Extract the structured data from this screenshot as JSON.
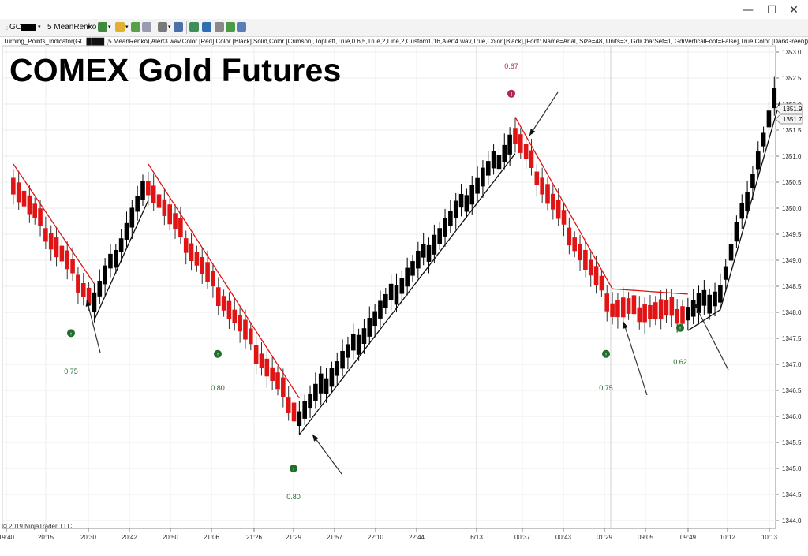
{
  "window": {
    "minimize": "—",
    "maximize": "☐",
    "close": "✕"
  },
  "toolbar": {
    "instrument": "GC",
    "period": "5 MeanRenko"
  },
  "indicator_label": "Turning_Points_Indicator(GC ████ (5 MeanRenko),Alert3.wav,Color [Red],Color [Black],Solid,Color [Crimson],TopLeft,True,0.6,5,True,2,Line,2,Custom1,16,Alert4.wav,True,Color [Black],[Font: Name=Arial, Size=48, Units=3, GdiCharSet=1, GdiVerticalFont=False],True,Color [DarkGreen])",
  "chart_title": "COMEX Gold Futures",
  "copyright": "© 2019 NinjaTrader, LLC",
  "colors": {
    "up": "#000000",
    "down": "#e01414",
    "buy_signal": "#1f6e2a",
    "sell_signal": "#b0274d",
    "arrow": "#333333"
  },
  "chart_data": {
    "type": "candlestick",
    "y_ticks": [
      "1353.0",
      "1352.5",
      "1352.0",
      "1351.5",
      "1351.0",
      "1350.5",
      "1350.0",
      "1349.5",
      "1349.0",
      "1348.5",
      "1348.0",
      "1347.5",
      "1347.0",
      "1346.5",
      "1346.0",
      "1345.5",
      "1345.0",
      "1344.5",
      "1344.0"
    ],
    "ylim": [
      1343.9,
      1353.1
    ],
    "x_ticks": [
      "19:40",
      "20:15",
      "20:30",
      "20:42",
      "20:50",
      "21:06",
      "21:26",
      "21:29",
      "21:57",
      "22:10",
      "22:44",
      "6/13",
      "00:37",
      "00:43",
      "01:29",
      "09:05",
      "09:49",
      "10:12",
      "10:13"
    ],
    "price_labels": [
      "1351.9",
      "1351.7"
    ],
    "swing_path": [
      [
        1350.5,
        1
      ],
      [
        1348.2,
        16
      ],
      [
        1350.5,
        26
      ],
      [
        1346.0,
        54
      ],
      [
        1351.4,
        94
      ],
      [
        1348.1,
        112
      ],
      [
        1348.0,
        126
      ],
      [
        1348.4,
        132
      ],
      [
        1352.4,
        143
      ]
    ],
    "signals": [
      {
        "type": "buy",
        "value": "0.75",
        "price": 1347.6
      },
      {
        "type": "buy",
        "value": "0.80",
        "price": 1347.2
      },
      {
        "type": "buy",
        "value": "0.80",
        "price": 1345.0
      },
      {
        "type": "sell",
        "value": "0.67",
        "price": 1352.2
      },
      {
        "type": "buy",
        "value": "0.75",
        "price": 1347.2
      },
      {
        "type": "buy",
        "value": "0.62",
        "price": 1347.7
      }
    ]
  }
}
